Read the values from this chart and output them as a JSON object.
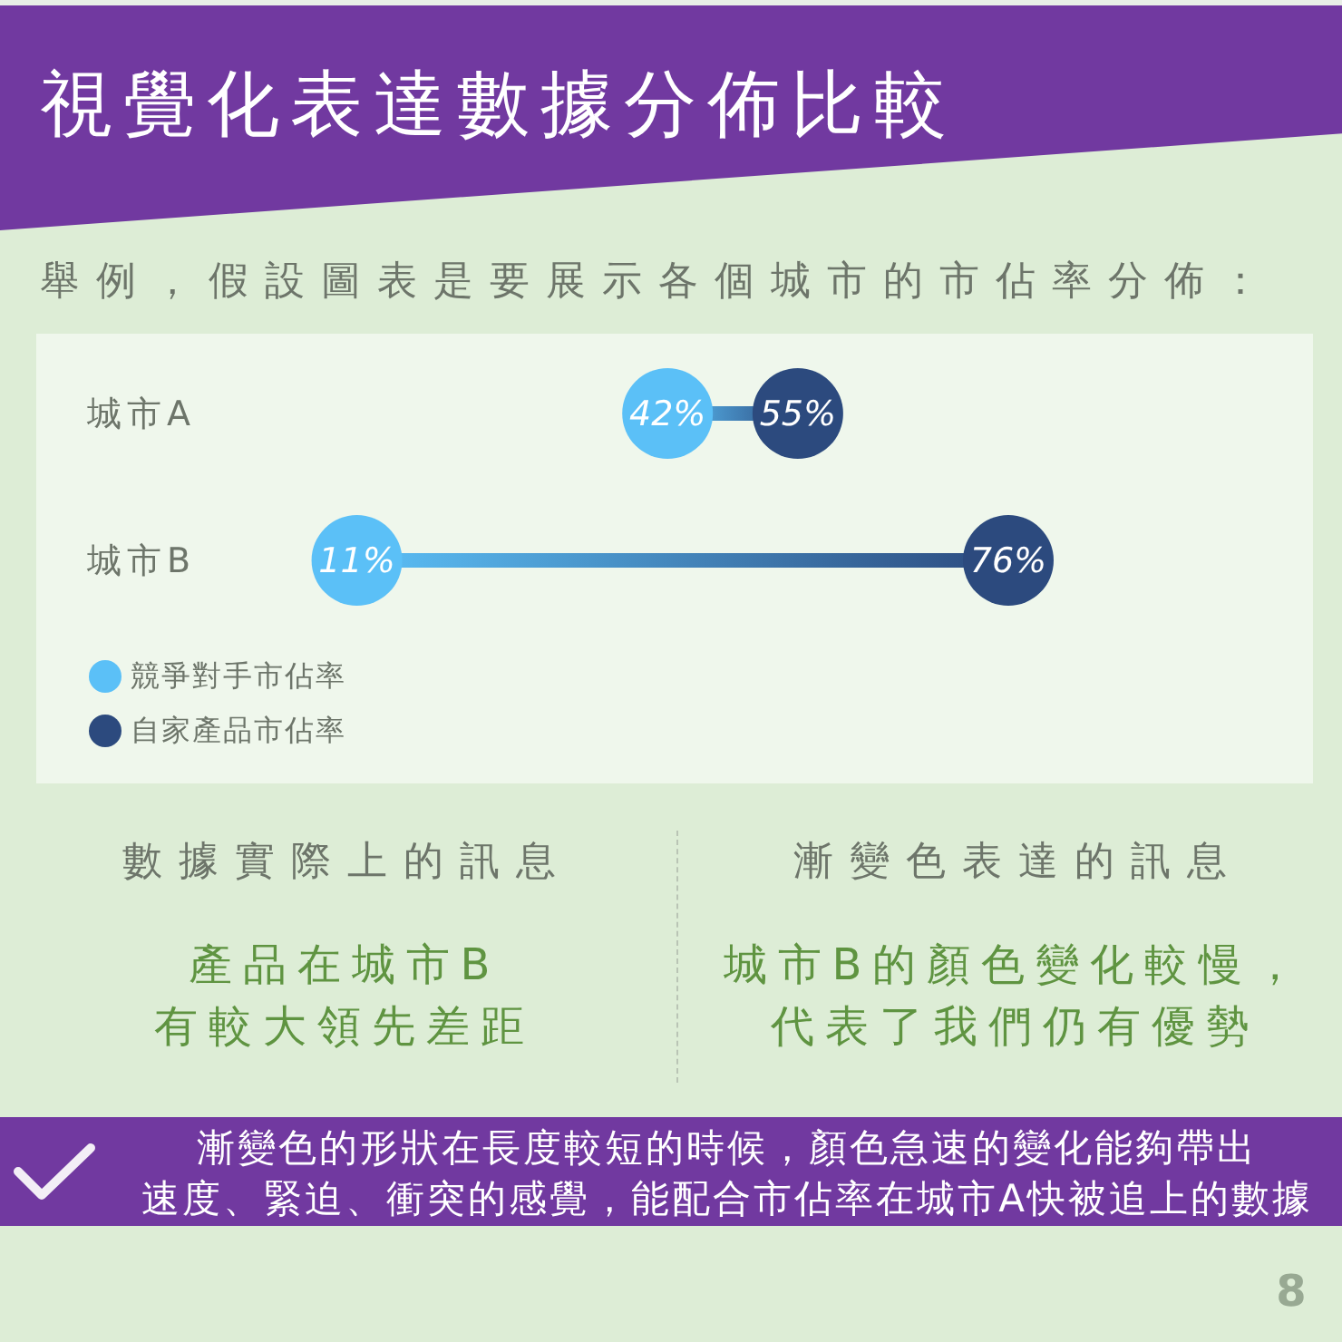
{
  "chart_data": {
    "type": "scatter",
    "orientation": "horizontal",
    "title": "視覺化表達數據分佈比較",
    "subtitle": "舉例，假設圖表是要展示各個城市的市佔率分佈：",
    "categories": [
      "城市A",
      "城市B"
    ],
    "series": [
      {
        "name": "競爭對手市佔率",
        "color": "#5bc0f7",
        "values": [
          42,
          11
        ],
        "value_labels": [
          "42%",
          "11%"
        ]
      },
      {
        "name": "自家產品市佔率",
        "color": "#2c4a7e",
        "values": [
          55,
          76
        ],
        "value_labels": [
          "55%",
          "76%"
        ]
      }
    ],
    "marker": "circle",
    "legend": "bottom left",
    "tick_labels": "y",
    "annotations": [
      "數據實際上的訊息",
      "產品在城市B有較大領先差距",
      "漸變色表達的訊息",
      "城市B的顏色變化較慢，代表了我們仍有優勢",
      "漸變色的形狀在長度較短的時候，顏色急速的變化能夠帶出速度、緊迫、衝突的感覺，能配合市佔率在城市A快被追上的數據",
      "8"
    ]
  }
}
